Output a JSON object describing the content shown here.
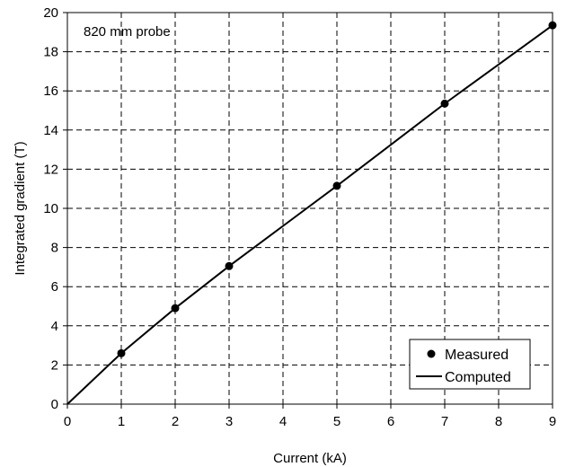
{
  "chart_data": {
    "type": "scatter",
    "title": "",
    "annotation": "820 mm probe",
    "xlabel": "Current (kA)",
    "ylabel": "Integrated gradient (T)",
    "xlim": [
      0,
      9
    ],
    "ylim": [
      0,
      20
    ],
    "xticks": [
      "0",
      "1",
      "2",
      "3",
      "4",
      "5",
      "6",
      "7",
      "8",
      "9"
    ],
    "yticks": [
      "0",
      "2",
      "4",
      "6",
      "8",
      "10",
      "12",
      "14",
      "16",
      "18",
      "20"
    ],
    "grid": true,
    "grid_style": "dashed",
    "legend_position": "bottom-right",
    "series": [
      {
        "name": "Measured",
        "style": "markers",
        "color": "#000000",
        "x": [
          1,
          2,
          3,
          5,
          7,
          9
        ],
        "y": [
          2.6,
          4.9,
          7.05,
          11.15,
          15.35,
          19.35
        ]
      },
      {
        "name": "Computed",
        "style": "line",
        "color": "#000000",
        "x": [
          0,
          1,
          2,
          3,
          4,
          5,
          6,
          7,
          8,
          9
        ],
        "y": [
          0,
          2.6,
          4.9,
          7.05,
          9.1,
          11.15,
          13.25,
          15.35,
          17.35,
          19.35
        ]
      }
    ]
  }
}
